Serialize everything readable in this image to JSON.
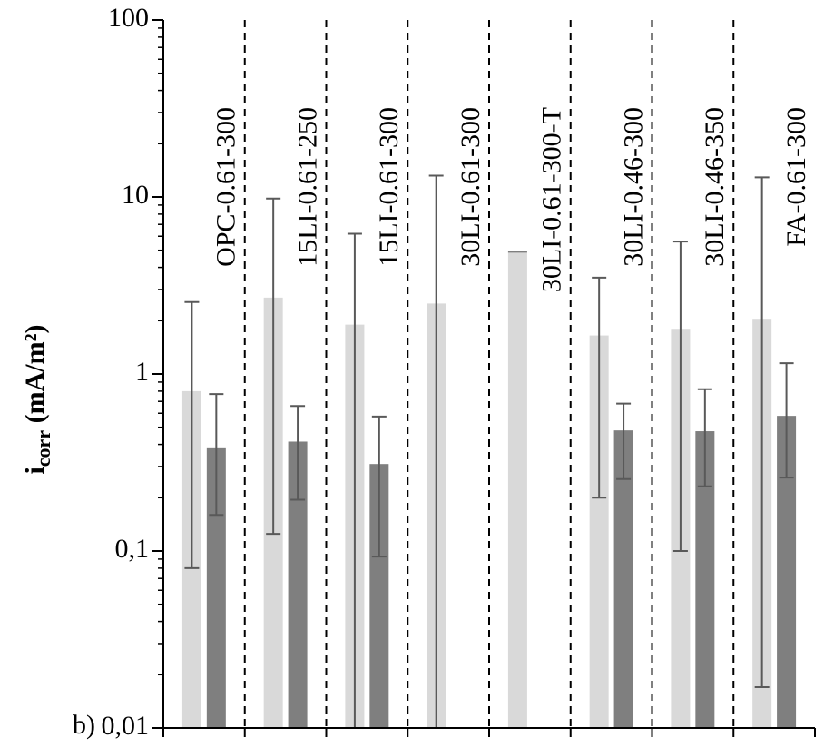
{
  "chart_data": {
    "type": "bar",
    "panel_label": "b)",
    "ylabel_main": "i",
    "ylabel_sub": "corr",
    "ylabel_unit": " (mA/m²)",
    "yscale": "log",
    "ylim": [
      0.01,
      100
    ],
    "yticks": [
      {
        "value": 0.01,
        "label": "0,01"
      },
      {
        "value": 0.1,
        "label": "0,1"
      },
      {
        "value": 1,
        "label": "1"
      },
      {
        "value": 10,
        "label": "10"
      },
      {
        "value": 100,
        "label": "100"
      }
    ],
    "categories": [
      "OPC-0.61-300",
      "15LI-0.61-250",
      "15LI-0.61-300",
      "30LI-0.61-300",
      "30LI-0.61-300-T",
      "30LI-0.46-300",
      "30LI-0.46-350",
      "FA-0.61-300"
    ],
    "series": [
      {
        "color": "#d9d9d9",
        "values": [
          0.8,
          2.7,
          1.9,
          2.5,
          4.9,
          1.65,
          1.8,
          2.05
        ],
        "err_low": [
          0.08,
          0.125,
          0.01,
          0.01,
          4.9,
          0.2,
          0.1,
          0.017
        ],
        "err_high": [
          2.55,
          9.8,
          6.2,
          13.2,
          4.9,
          3.5,
          5.6,
          12.9
        ]
      },
      {
        "color": "#7f7f7f",
        "values": [
          0.385,
          0.415,
          0.31,
          null,
          null,
          0.48,
          0.475,
          0.58
        ],
        "err_low": [
          0.16,
          0.195,
          0.093,
          null,
          null,
          0.255,
          0.232,
          0.26
        ],
        "err_high": [
          0.77,
          0.66,
          0.575,
          null,
          null,
          0.68,
          0.82,
          1.15
        ]
      }
    ],
    "grid": false,
    "legend": "none"
  }
}
